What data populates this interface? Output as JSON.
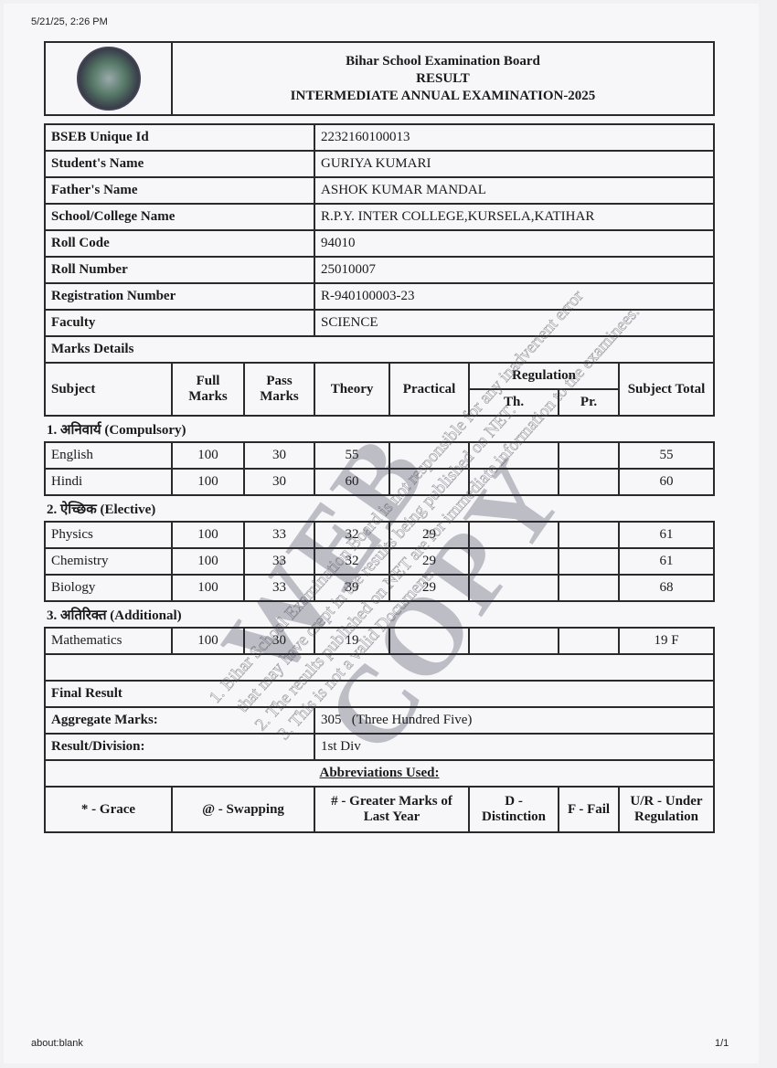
{
  "browser": {
    "timestamp": "5/21/25, 2:26 PM",
    "url": "about:blank",
    "page_count": "1/1"
  },
  "header": {
    "board": "Bihar School Examination Board",
    "result": "RESULT",
    "exam": "INTERMEDIATE ANNUAL EXAMINATION-2025",
    "logo": "bseb-seal"
  },
  "student": [
    {
      "label": "BSEB Unique Id",
      "value": "2232160100013"
    },
    {
      "label": "Student's Name",
      "value": "GURIYA KUMARI"
    },
    {
      "label": "Father's Name",
      "value": "ASHOK KUMAR MANDAL"
    },
    {
      "label": "School/College Name",
      "value": "R.P.Y. INTER COLLEGE,KURSELA,KATIHAR"
    },
    {
      "label": "Roll Code",
      "value": "94010"
    },
    {
      "label": "Roll Number",
      "value": "25010007"
    },
    {
      "label": "Registration Number",
      "value": "R-940100003-23"
    },
    {
      "label": "Faculty",
      "value": "SCIENCE"
    }
  ],
  "marks": {
    "title": "Marks Details",
    "headers": {
      "subject": "Subject",
      "full": "Full Marks",
      "pass": "Pass Marks",
      "theory": "Theory",
      "practical": "Practical",
      "regulation": "Regulation",
      "th": "Th.",
      "pr": "Pr.",
      "total": "Subject Total"
    },
    "sections": [
      {
        "title": "1. अनिवार्य (Compulsory)",
        "rows": [
          {
            "subject": "English",
            "full": "100",
            "pass": "30",
            "theory": "55",
            "practical": "",
            "th": "",
            "pr": "",
            "total": "55"
          },
          {
            "subject": "Hindi",
            "full": "100",
            "pass": "30",
            "theory": "60",
            "practical": "",
            "th": "",
            "pr": "",
            "total": "60"
          }
        ]
      },
      {
        "title": "2. ऐच्छिक (Elective)",
        "rows": [
          {
            "subject": "Physics",
            "full": "100",
            "pass": "33",
            "theory": "32",
            "practical": "29",
            "th": "",
            "pr": "",
            "total": "61"
          },
          {
            "subject": "Chemistry",
            "full": "100",
            "pass": "33",
            "theory": "32",
            "practical": "29",
            "th": "",
            "pr": "",
            "total": "61"
          },
          {
            "subject": "Biology",
            "full": "100",
            "pass": "33",
            "theory": "39",
            "practical": "29",
            "th": "",
            "pr": "",
            "total": "68"
          }
        ]
      },
      {
        "title": "3. अतिरिक्त (Additional)",
        "rows": [
          {
            "subject": "Mathematics",
            "full": "100",
            "pass": "30",
            "theory": "19",
            "practical": "",
            "th": "",
            "pr": "",
            "total": "19 F"
          }
        ]
      }
    ]
  },
  "final": {
    "title": "Final Result",
    "aggregate_label": "Aggregate Marks:",
    "aggregate_value": "305   (Three Hundred Five)",
    "division_label": "Result/Division:",
    "division_value": "1st Div"
  },
  "abbreviations": {
    "title": "Abbreviations Used:",
    "items": [
      "* - Grace",
      "@ - Swapping",
      "# - Greater Marks of Last Year",
      "D - Distinction",
      "F - Fail",
      "U/R - Under Regulation"
    ]
  },
  "watermark": {
    "big": "WEB COPY",
    "lines": [
      "1. Bihar School Examination Board is not responsible for any inadvertent error",
      "that may have crept in the results being published on NET.",
      "2. The results published on NET are for immediate information to the examinees.",
      "3. This is not a valid Document."
    ]
  }
}
